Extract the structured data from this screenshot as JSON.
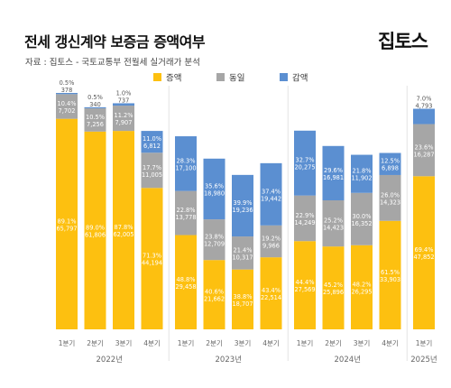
{
  "header": {
    "title": "전세 갱신계약 보증금 증액여부",
    "logo": "집토스",
    "source": "자료 : 집토스 - 국토교통부 전월세 실거래가 분석"
  },
  "chart_data": {
    "type": "bar",
    "stacked": "percent",
    "title": "전세 갱신계약 보증금 증액여부",
    "legend": {
      "placement": "top",
      "entries": [
        "증액",
        "동일",
        "감액"
      ]
    },
    "colors": {
      "증액": "#FDC010",
      "동일": "#A6A6A6",
      "감액": "#5B8FD1"
    },
    "categories": [
      "1분기",
      "2분기",
      "3분기",
      "4분기",
      "1분기",
      "2분기",
      "3분기",
      "4분기",
      "1분기",
      "2분기",
      "3분기",
      "4분기",
      "1분기"
    ],
    "groups": [
      {
        "label": "2022년",
        "start": 0,
        "count": 4
      },
      {
        "label": "2023년",
        "start": 4,
        "count": 4
      },
      {
        "label": "2024년",
        "start": 8,
        "count": 4
      },
      {
        "label": "2025년",
        "start": 12,
        "count": 1
      }
    ],
    "series": [
      {
        "name": "증액",
        "percent": [
          "89.1%",
          "89.0%",
          "87.8%",
          "71.3%",
          "48.8%",
          "40.6%",
          "38.8%",
          "43.4%",
          "44.4%",
          "45.2%",
          "48.2%",
          "61.5%",
          "69.4%"
        ],
        "values": [
          "65,797",
          "61,806",
          "62,005",
          "44,194",
          "29,458",
          "21,662",
          "18,707",
          "22,514",
          "27,569",
          "25,896",
          "26,295",
          "33,903",
          "47,852"
        ]
      },
      {
        "name": "동일",
        "percent": [
          "10.4%",
          "10.5%",
          "11.2%",
          "17.7%",
          "22.8%",
          "23.8%",
          "21.4%",
          "19.2%",
          "22.9%",
          "25.2%",
          "30.0%",
          "26.0%",
          "23.6%"
        ],
        "values": [
          "7,702",
          "7,256",
          "7,907",
          "11,005",
          "13,778",
          "12,709",
          "10,317",
          "9,966",
          "14,249",
          "14,423",
          "16,352",
          "14,323",
          "16,287"
        ]
      },
      {
        "name": "감액",
        "percent": [
          "0.5%",
          "0.5%",
          "1.0%",
          "11.0%",
          "28.3%",
          "35.6%",
          "39.9%",
          "37.4%",
          "32.7%",
          "29.6%",
          "21.8%",
          "12.5%",
          "7.0%"
        ],
        "values": [
          "378",
          "340",
          "737",
          "6,812",
          "17,100",
          "18,980",
          "19,236",
          "19,442",
          "20,275",
          "16,981",
          "11,902",
          "6,898",
          "4,793"
        ]
      }
    ]
  }
}
